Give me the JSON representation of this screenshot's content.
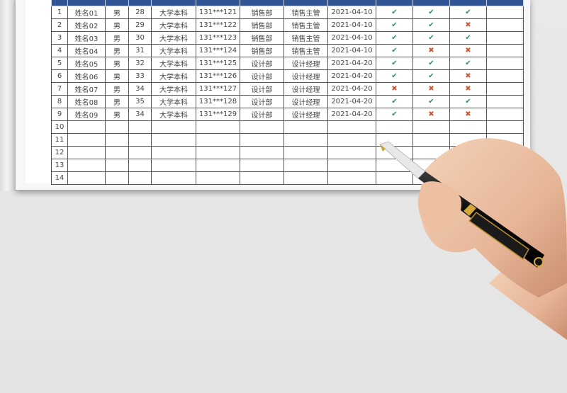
{
  "table": {
    "columns": 13,
    "rows": [
      {
        "no": "1",
        "name": "姓名01",
        "gender": "男",
        "age": "28",
        "edu": "大学本科",
        "phone": "131***121",
        "dept": "销售部",
        "position": "销售主管",
        "date": "2021-04-10",
        "c1": "check",
        "c2": "check",
        "c3": "check"
      },
      {
        "no": "2",
        "name": "姓名02",
        "gender": "男",
        "age": "29",
        "edu": "大学本科",
        "phone": "131***122",
        "dept": "销售部",
        "position": "销售主管",
        "date": "2021-04-10",
        "c1": "check",
        "c2": "check",
        "c3": "cross"
      },
      {
        "no": "3",
        "name": "姓名03",
        "gender": "男",
        "age": "30",
        "edu": "大学本科",
        "phone": "131***123",
        "dept": "销售部",
        "position": "销售主管",
        "date": "2021-04-10",
        "c1": "check",
        "c2": "check",
        "c3": "check"
      },
      {
        "no": "4",
        "name": "姓名04",
        "gender": "男",
        "age": "31",
        "edu": "大学本科",
        "phone": "131***124",
        "dept": "销售部",
        "position": "销售主管",
        "date": "2021-04-10",
        "c1": "check",
        "c2": "cross",
        "c3": "cross"
      },
      {
        "no": "5",
        "name": "姓名05",
        "gender": "男",
        "age": "32",
        "edu": "大学本科",
        "phone": "131***125",
        "dept": "设计部",
        "position": "设计经理",
        "date": "2021-04-20",
        "c1": "check",
        "c2": "check",
        "c3": "check"
      },
      {
        "no": "6",
        "name": "姓名06",
        "gender": "男",
        "age": "33",
        "edu": "大学本科",
        "phone": "131***126",
        "dept": "设计部",
        "position": "设计经理",
        "date": "2021-04-20",
        "c1": "check",
        "c2": "check",
        "c3": "cross"
      },
      {
        "no": "7",
        "name": "姓名07",
        "gender": "男",
        "age": "34",
        "edu": "大学本科",
        "phone": "131***127",
        "dept": "设计部",
        "position": "设计经理",
        "date": "2021-04-20",
        "c1": "cross",
        "c2": "cross",
        "c3": "cross"
      },
      {
        "no": "8",
        "name": "姓名08",
        "gender": "男",
        "age": "35",
        "edu": "大学本科",
        "phone": "131***128",
        "dept": "设计部",
        "position": "设计经理",
        "date": "2021-04-20",
        "c1": "check",
        "c2": "check",
        "c3": "check"
      },
      {
        "no": "9",
        "name": "姓名09",
        "gender": "男",
        "age": "34",
        "edu": "大学本科",
        "phone": "131***129",
        "dept": "设计部",
        "position": "设计经理",
        "date": "2021-04-20",
        "c1": "check",
        "c2": "cross",
        "c3": "cross"
      }
    ],
    "empty_rows": [
      "10",
      "11",
      "12",
      "13",
      "14"
    ]
  },
  "marks": {
    "check": "✔",
    "cross": "✖"
  },
  "colors": {
    "header": "#2f5597",
    "check": "#3a8a6a",
    "cross": "#d9532c"
  }
}
